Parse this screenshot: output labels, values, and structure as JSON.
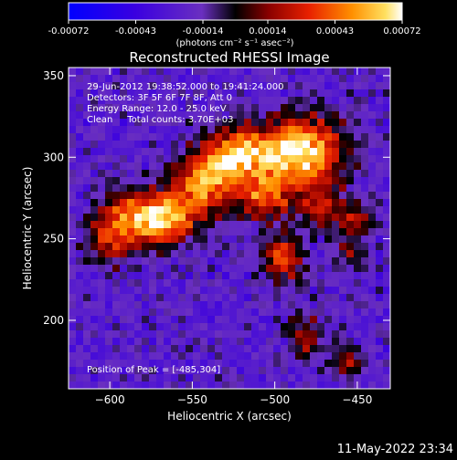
{
  "chart_data": {
    "type": "heatmap",
    "title": "Reconstructed RHESSI Image",
    "xlabel": "Heliocentric X (arcsec)",
    "ylabel": "Heliocentric Y (arcsec)",
    "xlim": [
      -625,
      -430
    ],
    "ylim": [
      158,
      355
    ],
    "x_ticks": [
      -600,
      -550,
      -500,
      -450
    ],
    "y_ticks": [
      200,
      250,
      300,
      350
    ],
    "colorbar": {
      "min": -0.00072,
      "max": 0.00072,
      "tick_values": [
        -0.00072,
        -0.00043,
        -0.00014,
        0.00014,
        0.00043,
        0.00072
      ],
      "tick_labels": [
        "-0.00072",
        "-0.00043",
        "-0.00014",
        "0.00014",
        "0.00043",
        "0.00072"
      ],
      "unit_label": "(photons cm⁻² s⁻¹ asec⁻²)"
    },
    "info_lines": [
      "29-Jun-2012 19:38:52.000 to 19:41:24.000",
      "Detectors: 3F 5F 6F 7F 8F, Att 0",
      "Energy Range: 12.0 - 25.0 keV",
      "Clean     Total counts: 3.70E+03"
    ],
    "peak_label": "Position of Peak = [-485,304]",
    "peak": [
      -485,
      304
    ],
    "sources": [
      {
        "x": -485,
        "y": 304,
        "sx": 18,
        "sy": 14,
        "amp": 1.0
      },
      {
        "x": -525,
        "y": 300,
        "sx": 14,
        "sy": 12,
        "amp": 0.85
      },
      {
        "x": -545,
        "y": 282,
        "sx": 12,
        "sy": 12,
        "amp": 0.7
      },
      {
        "x": -565,
        "y": 262,
        "sx": 12,
        "sy": 11,
        "amp": 0.7
      },
      {
        "x": -585,
        "y": 264,
        "sx": 13,
        "sy": 12,
        "amp": 0.6
      },
      {
        "x": -600,
        "y": 250,
        "sx": 10,
        "sy": 12,
        "amp": 0.45
      },
      {
        "x": -505,
        "y": 275,
        "sx": 12,
        "sy": 10,
        "amp": 0.6
      },
      {
        "x": -495,
        "y": 238,
        "sx": 8,
        "sy": 10,
        "amp": 0.65
      },
      {
        "x": -470,
        "y": 270,
        "sx": 10,
        "sy": 10,
        "amp": 0.45
      },
      {
        "x": -450,
        "y": 262,
        "sx": 8,
        "sy": 8,
        "amp": 0.35
      },
      {
        "x": -480,
        "y": 190,
        "sx": 8,
        "sy": 10,
        "amp": 0.4
      },
      {
        "x": -455,
        "y": 175,
        "sx": 7,
        "sy": 7,
        "amp": 0.35
      },
      {
        "x": -455,
        "y": 240,
        "sx": 7,
        "sy": 8,
        "amp": 0.3
      }
    ],
    "background_level": -0.32
  },
  "footer": {
    "timestamp": "11-May-2022 23:34"
  }
}
